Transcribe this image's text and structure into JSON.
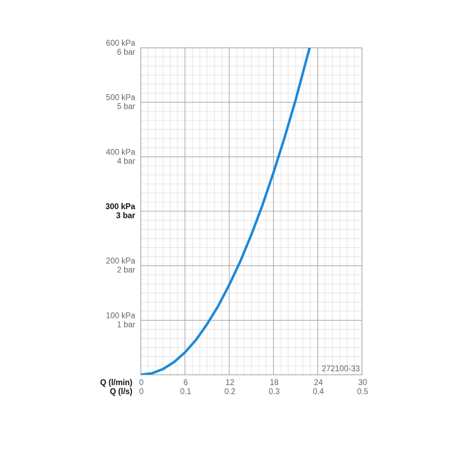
{
  "chart_data": {
    "type": "line",
    "x_label": "Q (l/min)",
    "x2_label": "Q (l/s)",
    "annotation": "272100-33",
    "x": [
      0,
      1.5,
      3,
      4.5,
      6,
      7.5,
      9,
      10.5,
      12,
      13.5,
      15,
      16.5,
      18,
      19.5,
      21,
      22.9
    ],
    "series": [
      {
        "color": "#1a87d8",
        "values": [
          0,
          2.6,
          10.3,
          23,
          41,
          64,
          93,
          126,
          165,
          208,
          257,
          311,
          371,
          435,
          504,
          600
        ]
      }
    ],
    "xlim": [
      0,
      30
    ],
    "xticks": [
      0,
      6,
      12,
      18,
      24,
      30
    ],
    "x2lim": [
      0,
      0.5
    ],
    "x2ticks": [
      0,
      0.1,
      0.2,
      0.3,
      0.4,
      0.5
    ],
    "ylim": [
      0,
      600
    ],
    "yticks": [
      {
        "value": 100,
        "label": "100 kPa"
      },
      {
        "value": 200,
        "label": "200 kPa"
      },
      {
        "value": 300,
        "label": "300 kPa"
      },
      {
        "value": 400,
        "label": "400 kPa"
      },
      {
        "value": 500,
        "label": "500 kPa"
      },
      {
        "value": 600,
        "label": "600 kPa"
      }
    ],
    "y2lim": [
      0,
      6
    ],
    "y2ticks": [
      {
        "value": 1,
        "label": "1 bar"
      },
      {
        "value": 2,
        "label": "2 bar"
      },
      {
        "value": 3,
        "label": "3 bar"
      },
      {
        "value": 4,
        "label": "4 bar"
      },
      {
        "value": 5,
        "label": "5 bar"
      },
      {
        "value": 6,
        "label": "6 bar"
      }
    ],
    "emphasized_ytick": 300,
    "grid": true
  }
}
